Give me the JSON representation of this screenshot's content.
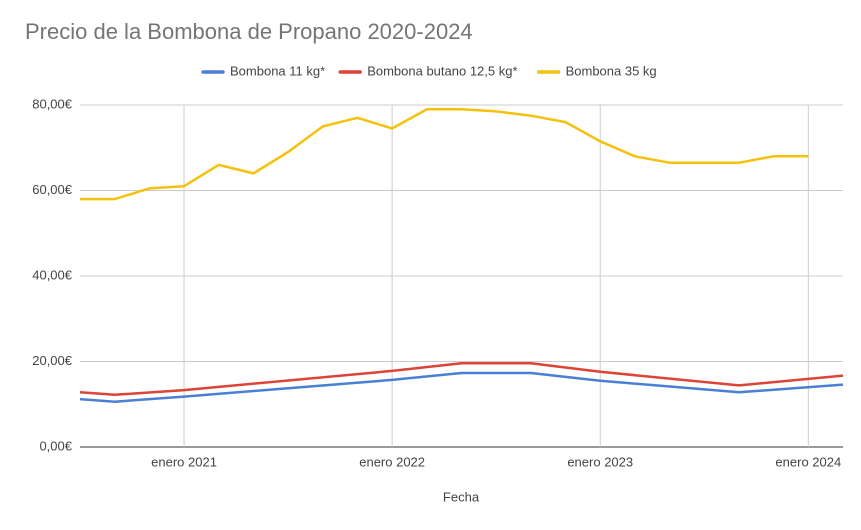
{
  "chart_data": {
    "type": "line",
    "title": "Precio de la Bombona de Propano 2020-2024",
    "x_label": "Fecha",
    "xlim": [
      "2020-07",
      "2024-03"
    ],
    "xticks": [
      {
        "value": "2021-01",
        "label": "enero 2021"
      },
      {
        "value": "2022-01",
        "label": "enero 2022"
      },
      {
        "value": "2023-01",
        "label": "enero 2023"
      },
      {
        "value": "2024-01",
        "label": "enero 2024"
      }
    ],
    "ylim": [
      0,
      80
    ],
    "yticks": [
      {
        "value": 0,
        "label": "0,00€"
      },
      {
        "value": 20,
        "label": "20,00€"
      },
      {
        "value": 40,
        "label": "40,00€"
      },
      {
        "value": 60,
        "label": "60,00€"
      },
      {
        "value": 80,
        "label": "80,00€"
      }
    ],
    "grid": true,
    "legend": "top",
    "series": [
      {
        "name": "Bombona 11 kg*",
        "color": "#4a7fd6",
        "x": [
          "2020-07",
          "2020-09",
          "2021-01",
          "2022-01",
          "2022-05",
          "2022-09",
          "2023-01",
          "2023-09",
          "2024-03"
        ],
        "values": [
          11.2,
          10.6,
          11.8,
          15.7,
          17.3,
          17.3,
          15.5,
          12.8,
          14.6
        ]
      },
      {
        "name": "Bombona butano 12,5 kg*",
        "color": "#db4437",
        "x": [
          "2020-07",
          "2020-09",
          "2021-01",
          "2022-01",
          "2022-05",
          "2022-09",
          "2023-01",
          "2023-09",
          "2024-03"
        ],
        "values": [
          12.8,
          12.2,
          13.3,
          17.8,
          19.6,
          19.6,
          17.6,
          14.4,
          16.7
        ]
      },
      {
        "name": "Bombona 35 kg",
        "color": "#f4c20d",
        "x": [
          "2020-07",
          "2020-09",
          "2020-11",
          "2021-01",
          "2021-03",
          "2021-05",
          "2021-07",
          "2021-09",
          "2021-11",
          "2022-01",
          "2022-03",
          "2022-05",
          "2022-07",
          "2022-09",
          "2022-11",
          "2023-01",
          "2023-03",
          "2023-05",
          "2023-07",
          "2023-09",
          "2023-11",
          "2024-01"
        ],
        "values": [
          58,
          58,
          60.5,
          61,
          66,
          64,
          69,
          75,
          77,
          74.5,
          79,
          79,
          78.5,
          77.5,
          76,
          71.5,
          68,
          66.5,
          66.5,
          66.5,
          68,
          68
        ]
      }
    ]
  }
}
